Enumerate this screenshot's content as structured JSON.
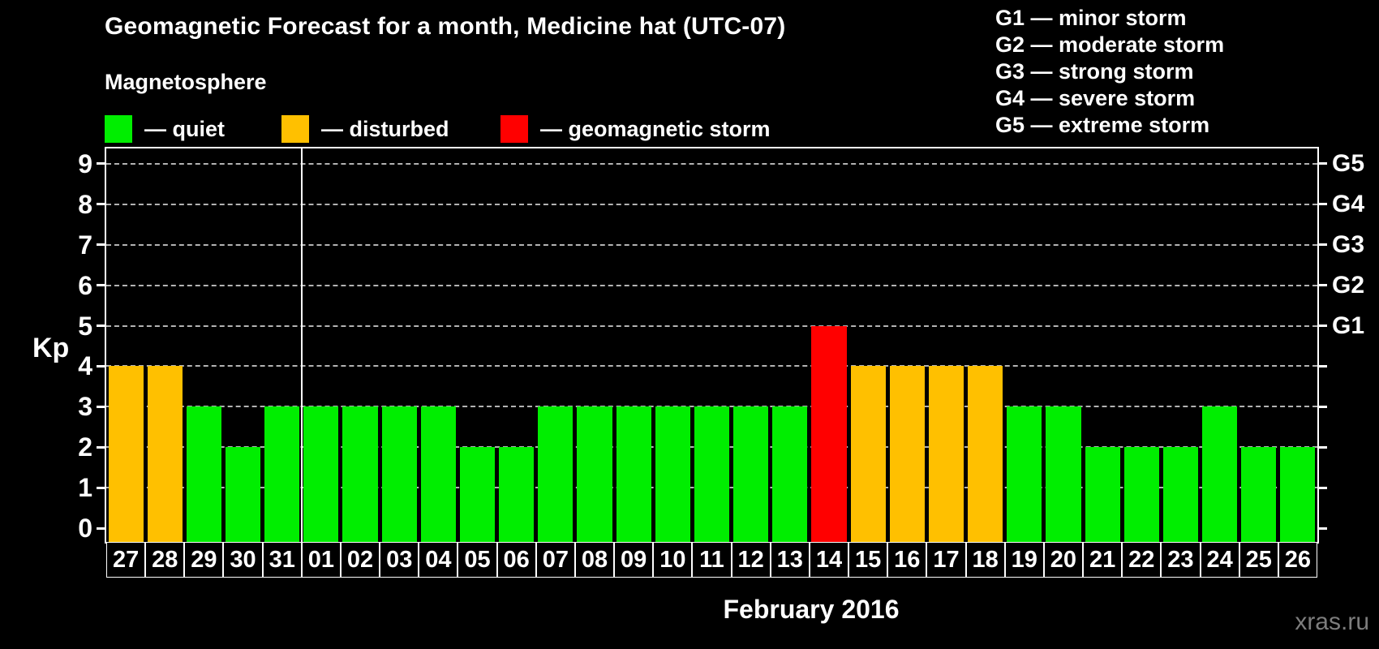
{
  "header": {
    "title": "Geomagnetic Forecast for a month, Medicine hat (UTC-07)",
    "subtitle": "Magnetosphere"
  },
  "legend": {
    "items": [
      {
        "label": "— quiet",
        "status": "quiet"
      },
      {
        "label": "— disturbed",
        "status": "disturbed"
      },
      {
        "label": "— geomagnetic storm",
        "status": "storm"
      }
    ]
  },
  "storm_scale": {
    "items": [
      "G1 — minor storm",
      "G2 — moderate storm",
      "G3 — strong storm",
      "G4 — severe storm",
      "G5 — extreme storm"
    ]
  },
  "axes": {
    "kp_label": "Kp",
    "left_tick_labels": [
      "0",
      "1",
      "2",
      "3",
      "4",
      "5",
      "6",
      "7",
      "8",
      "9"
    ],
    "right_labels": [
      {
        "text": "G1",
        "kp": 5
      },
      {
        "text": "G2",
        "kp": 6
      },
      {
        "text": "G3",
        "kp": 7
      },
      {
        "text": "G4",
        "kp": 8
      },
      {
        "text": "G5",
        "kp": 9
      }
    ]
  },
  "footer": {
    "month_label": "February 2016",
    "watermark": "xras.ru"
  },
  "colors": {
    "quiet": "#00ee00",
    "disturbed": "#ffc000",
    "storm": "#ff0000",
    "grid": "#b3b3b3",
    "axis": "#ffffff"
  },
  "chart_data": {
    "type": "bar",
    "title": "Geomagnetic Forecast for a month, Medicine hat (UTC-07)",
    "xlabel": "February 2016",
    "ylabel": "Kp",
    "ylim": [
      0,
      9
    ],
    "gridlines": [
      1,
      2,
      3,
      4,
      5,
      6,
      7,
      8,
      9
    ],
    "legend_position": "top",
    "categories": [
      "27",
      "28",
      "29",
      "30",
      "31",
      "01",
      "02",
      "03",
      "04",
      "05",
      "06",
      "07",
      "08",
      "09",
      "10",
      "11",
      "12",
      "13",
      "14",
      "15",
      "16",
      "17",
      "18",
      "19",
      "20",
      "21",
      "22",
      "23",
      "24",
      "25",
      "26"
    ],
    "values": [
      4,
      4,
      3,
      2,
      3,
      3,
      3,
      3,
      3,
      2,
      2,
      3,
      3,
      3,
      3,
      3,
      3,
      3,
      5,
      4,
      4,
      4,
      4,
      3,
      3,
      2,
      2,
      2,
      3,
      2,
      2
    ],
    "statuses": [
      "disturbed",
      "disturbed",
      "quiet",
      "quiet",
      "quiet",
      "quiet",
      "quiet",
      "quiet",
      "quiet",
      "quiet",
      "quiet",
      "quiet",
      "quiet",
      "quiet",
      "quiet",
      "quiet",
      "quiet",
      "quiet",
      "storm",
      "disturbed",
      "disturbed",
      "disturbed",
      "disturbed",
      "quiet",
      "quiet",
      "quiet",
      "quiet",
      "quiet",
      "quiet",
      "quiet",
      "quiet"
    ],
    "month_separator_after_index": 4,
    "right_axis_map": {
      "G1": 5,
      "G2": 6,
      "G3": 7,
      "G4": 8,
      "G5": 9
    }
  }
}
